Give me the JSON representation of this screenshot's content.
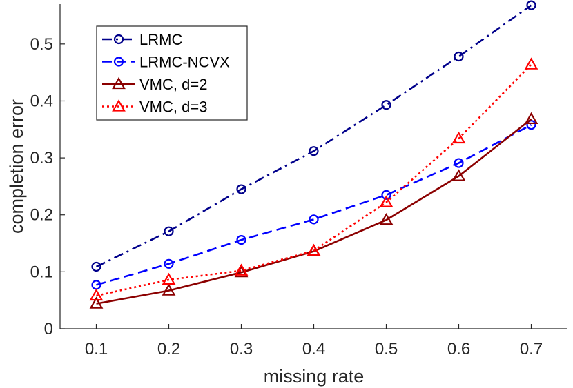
{
  "chart_data": {
    "type": "line",
    "xlabel": "missing rate",
    "ylabel": "completion error",
    "xlim": [
      0.05,
      0.75
    ],
    "ylim": [
      0,
      0.57
    ],
    "xticks": [
      "0.1",
      "0.2",
      "0.3",
      "0.4",
      "0.5",
      "0.6",
      "0.7"
    ],
    "yticks": [
      "0",
      "0.1",
      "0.2",
      "0.3",
      "0.4",
      "0.5"
    ],
    "grid": false,
    "legend_position": "top-left",
    "x": [
      0.1,
      0.2,
      0.3,
      0.4,
      0.5,
      0.6,
      0.7
    ],
    "series": [
      {
        "name": "LRMC",
        "values": [
          0.109,
          0.171,
          0.245,
          0.312,
          0.393,
          0.478,
          0.568
        ],
        "color": "#00008b",
        "dash": "dashdot",
        "marker": "circle"
      },
      {
        "name": "LRMC-NCVX",
        "values": [
          0.077,
          0.114,
          0.156,
          0.192,
          0.235,
          0.291,
          0.358
        ],
        "color": "#0000ff",
        "dash": "dashed",
        "marker": "circle"
      },
      {
        "name": "VMC, d=2",
        "values": [
          0.044,
          0.067,
          0.099,
          0.136,
          0.191,
          0.268,
          0.368
        ],
        "color": "#8b0000",
        "dash": "solid",
        "marker": "triangle"
      },
      {
        "name": "VMC, d=3",
        "values": [
          0.058,
          0.086,
          0.102,
          0.137,
          0.222,
          0.334,
          0.464
        ],
        "color": "#ff0000",
        "dash": "dotted",
        "marker": "triangle"
      }
    ]
  }
}
